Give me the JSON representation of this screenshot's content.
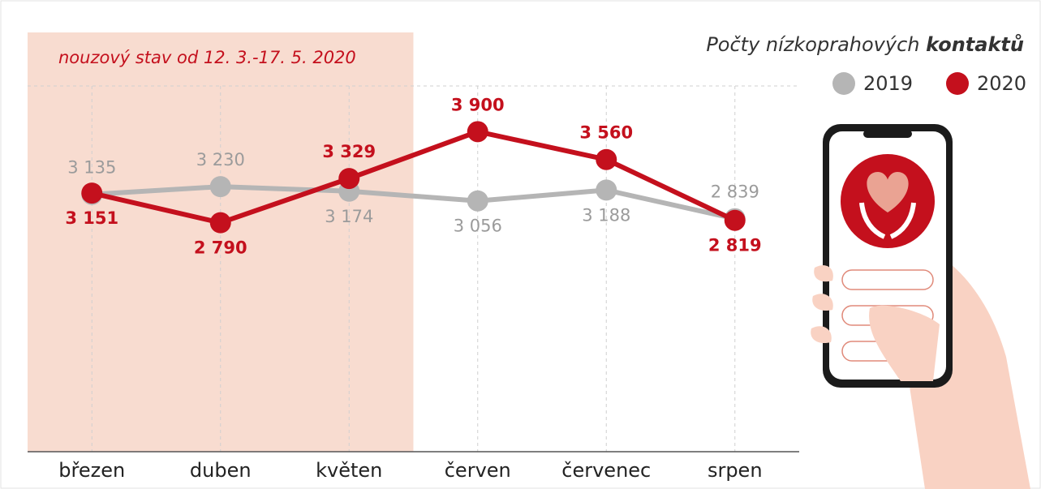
{
  "chart_data": {
    "type": "line",
    "title": {
      "text": "Počty nízkoprahových",
      "emphasis": "kontaktů"
    },
    "annotation": "nouzový stav od 12. 3.-17. 5. 2020",
    "annotation_color": "#f8dcd0",
    "categories": [
      "březen",
      "duben",
      "květen",
      "červen",
      "červenec",
      "srpen"
    ],
    "series": [
      {
        "name": "2019",
        "color": "#b5b5b5",
        "label_color": "#9b9b9b",
        "values": [
          3135,
          3230,
          3174,
          3056,
          3188,
          2839
        ],
        "value_labels": [
          "3 135",
          "3 230",
          "3 174",
          "3 056",
          "3 188",
          "2 839"
        ]
      },
      {
        "name": "2020",
        "color": "#c4101d",
        "label_color": "#c4101d",
        "values": [
          3151,
          2790,
          3329,
          3900,
          3560,
          2819
        ],
        "value_labels": [
          "3 151",
          "2 790",
          "3 329",
          "3 900",
          "3 560",
          "2 819"
        ]
      }
    ],
    "ylim": [
      0,
      5000
    ],
    "legend": "top-right"
  }
}
